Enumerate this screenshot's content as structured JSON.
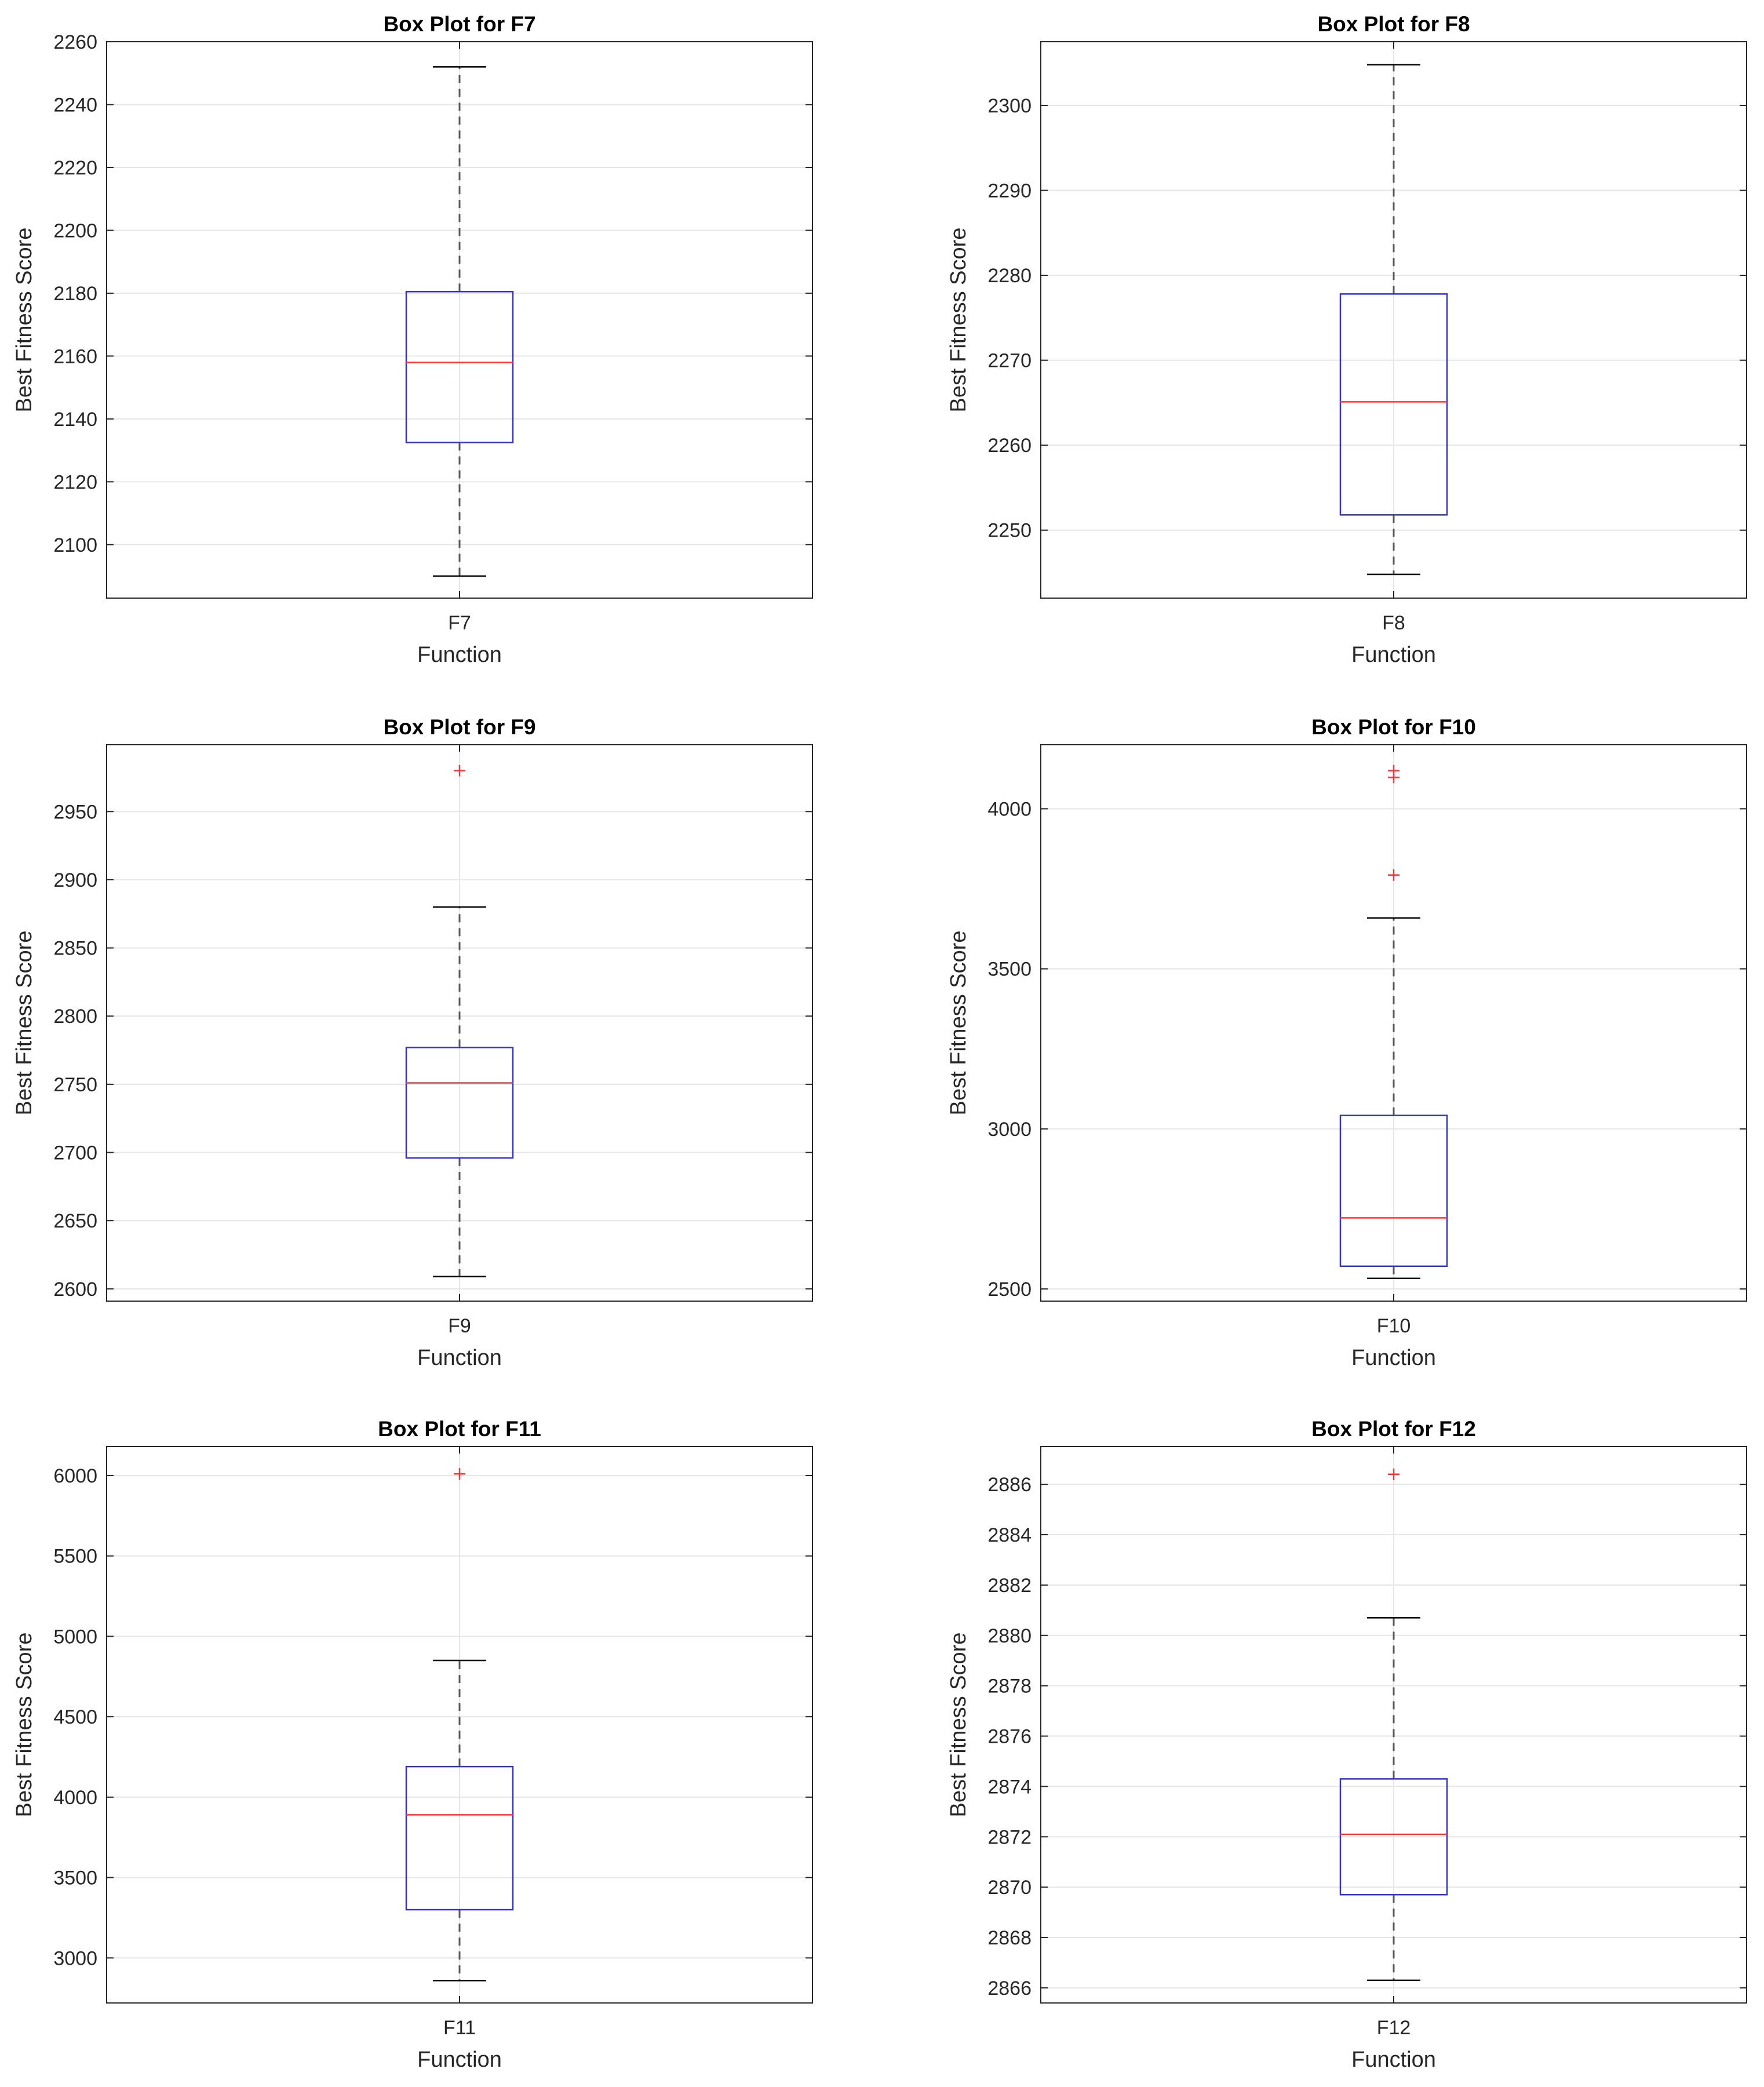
{
  "colors": {
    "box": "#3333cc",
    "median": "#ff3333",
    "whisker": "#595959",
    "outlier": "#ff3333",
    "grid": "#e6e6e6",
    "axis": "#262626"
  },
  "chart_data": [
    {
      "type": "box",
      "title": "Box Plot for F7",
      "xlabel": "Function",
      "ylabel": "Best Fitness Score",
      "categories": [
        "F7"
      ],
      "ylim": [
        2083,
        2260
      ],
      "yticks": [
        2100,
        2120,
        2140,
        2160,
        2180,
        2200,
        2220,
        2240,
        2260
      ],
      "grid": true,
      "box": {
        "min": 2090,
        "q1": 2132.5,
        "median": 2158,
        "q3": 2180.5,
        "max": 2252
      },
      "outliers": []
    },
    {
      "type": "box",
      "title": "Box Plot for F8",
      "xlabel": "Function",
      "ylabel": "Best Fitness Score",
      "categories": [
        "F8"
      ],
      "ylim": [
        2242,
        2307.5
      ],
      "yticks": [
        2250,
        2260,
        2270,
        2280,
        2290,
        2300
      ],
      "grid": true,
      "box": {
        "min": 2244.8,
        "q1": 2251.8,
        "median": 2265.1,
        "q3": 2277.8,
        "max": 2304.8
      },
      "outliers": []
    },
    {
      "type": "box",
      "title": "Box Plot for F9",
      "xlabel": "Function",
      "ylabel": "Best Fitness Score",
      "categories": [
        "F9"
      ],
      "ylim": [
        2591,
        2999
      ],
      "yticks": [
        2600,
        2650,
        2700,
        2750,
        2800,
        2850,
        2900,
        2950
      ],
      "grid": true,
      "box": {
        "min": 2609,
        "q1": 2696,
        "median": 2751,
        "q3": 2777,
        "max": 2880
      },
      "outliers": [
        2980
      ]
    },
    {
      "type": "box",
      "title": "Box Plot for F10",
      "xlabel": "Function",
      "ylabel": "Best Fitness Score",
      "categories": [
        "F10"
      ],
      "ylim": [
        2462,
        4200
      ],
      "yticks": [
        2500,
        3000,
        3500,
        4000
      ],
      "grid": true,
      "box": {
        "min": 2533,
        "q1": 2571,
        "median": 2722,
        "q3": 3042,
        "max": 3659
      },
      "outliers": [
        3793,
        4098,
        4119
      ]
    },
    {
      "type": "box",
      "title": "Box Plot for F11",
      "xlabel": "Function",
      "ylabel": "Best Fitness Score",
      "categories": [
        "F11"
      ],
      "ylim": [
        2720,
        6180
      ],
      "yticks": [
        3000,
        3500,
        4000,
        4500,
        5000,
        5500,
        6000
      ],
      "grid": true,
      "box": {
        "min": 2859,
        "q1": 3300,
        "median": 3890,
        "q3": 4190,
        "max": 4850
      },
      "outliers": [
        6010
      ]
    },
    {
      "type": "box",
      "title": "Box Plot for F12",
      "xlabel": "Function",
      "ylabel": "Best Fitness Score",
      "categories": [
        "F12"
      ],
      "ylim": [
        2865.4,
        2887.5
      ],
      "yticks": [
        2866,
        2868,
        2870,
        2872,
        2874,
        2876,
        2878,
        2880,
        2882,
        2884,
        2886
      ],
      "grid": true,
      "box": {
        "min": 2866.3,
        "q1": 2869.7,
        "median": 2872.1,
        "q3": 2874.3,
        "max": 2880.7
      },
      "outliers": [
        2886.4
      ]
    }
  ]
}
